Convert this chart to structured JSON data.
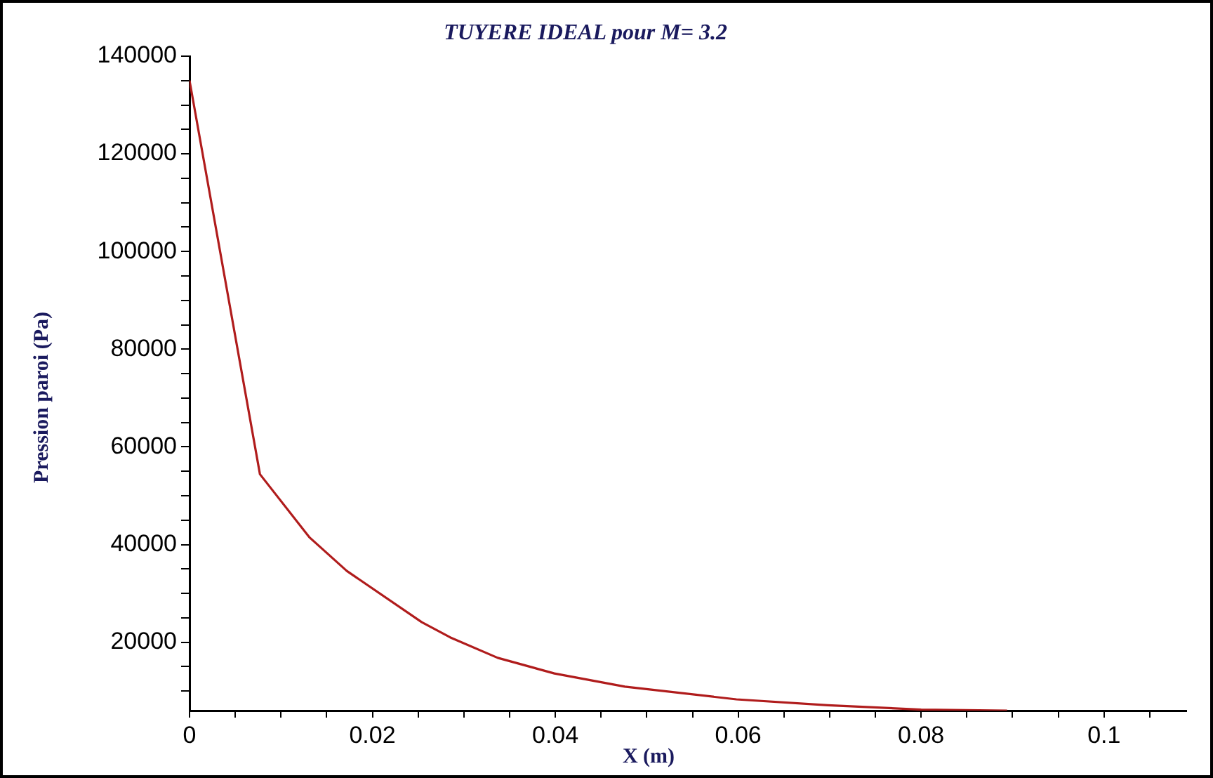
{
  "chart_data": {
    "type": "line",
    "title": "TUYERE IDEAL pour M= 3.2",
    "xlabel": "X (m)",
    "ylabel": "Pression paroi (Pa)",
    "x": [
      0,
      0.0077,
      0.0131,
      0.0172,
      0.0254,
      0.0285,
      0.0337,
      0.0399,
      0.0476,
      0.0598,
      0.0698,
      0.08,
      0.0894
    ],
    "series": [
      {
        "color": "#b01c1c",
        "values": [
          135000,
          54400,
          41500,
          34600,
          24100,
          21000,
          16800,
          13600,
          10900,
          8300,
          7100,
          6200,
          6000
        ]
      }
    ],
    "xlim": [
      0,
      0.109
    ],
    "ylim": [
      6000,
      140000
    ],
    "xticks": [
      0,
      {
        "value": 0.005,
        "label": null
      },
      {
        "value": 0.01,
        "label": null
      },
      {
        "value": 0.015,
        "label": null
      },
      0.02,
      {
        "value": 0.025,
        "label": null
      },
      {
        "value": 0.03,
        "label": null
      },
      {
        "value": 0.035,
        "label": null
      },
      0.04,
      {
        "value": 0.045,
        "label": null
      },
      {
        "value": 0.05,
        "label": null
      },
      {
        "value": 0.055,
        "label": null
      },
      0.06,
      {
        "value": 0.065,
        "label": null
      },
      {
        "value": 0.07,
        "label": null
      },
      {
        "value": 0.075,
        "label": null
      },
      0.08,
      {
        "value": 0.085,
        "label": null
      },
      {
        "value": 0.09,
        "label": null
      },
      {
        "value": 0.095,
        "label": null
      },
      0.1,
      {
        "value": 0.105,
        "label": null
      }
    ],
    "yticks": [
      {
        "value": 10000,
        "label": null
      },
      {
        "value": 15000,
        "label": null
      },
      20000,
      {
        "value": 25000,
        "label": null
      },
      {
        "value": 30000,
        "label": null
      },
      {
        "value": 35000,
        "label": null
      },
      40000,
      {
        "value": 45000,
        "label": null
      },
      {
        "value": 50000,
        "label": null
      },
      {
        "value": 55000,
        "label": null
      },
      60000,
      {
        "value": 65000,
        "label": null
      },
      {
        "value": 70000,
        "label": null
      },
      {
        "value": 75000,
        "label": null
      },
      80000,
      {
        "value": 85000,
        "label": null
      },
      {
        "value": 90000,
        "label": null
      },
      {
        "value": 95000,
        "label": null
      },
      100000,
      {
        "value": 105000,
        "label": null
      },
      {
        "value": 110000,
        "label": null
      },
      {
        "value": 115000,
        "label": null
      },
      120000,
      {
        "value": 125000,
        "label": null
      },
      {
        "value": 130000,
        "label": null
      },
      {
        "value": 135000,
        "label": null
      },
      140000
    ],
    "grid": false,
    "legend": false,
    "marker": "none",
    "line_style": "solid"
  }
}
